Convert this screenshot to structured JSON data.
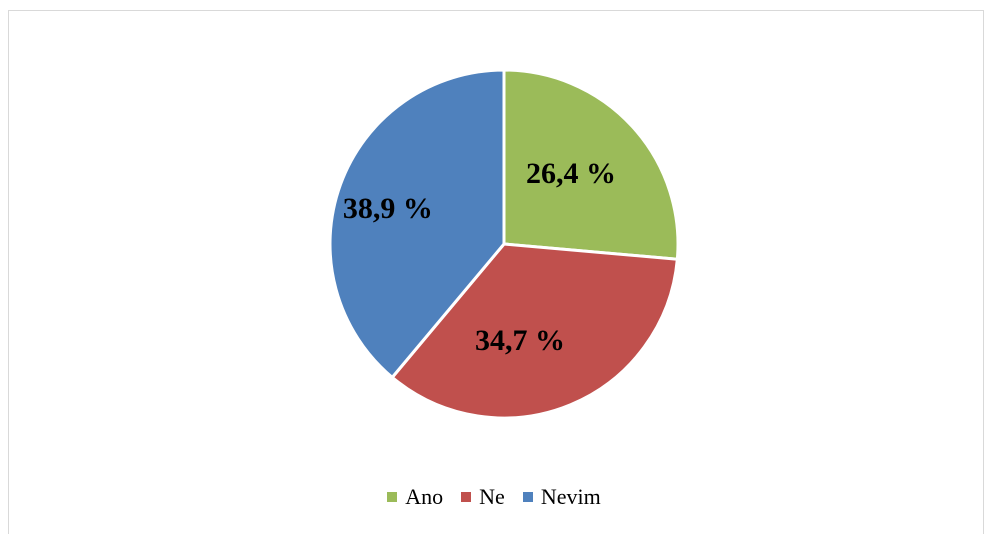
{
  "chart_data": {
    "type": "pie",
    "title": "",
    "categories": [
      "Ano",
      "Ne",
      "Nevim"
    ],
    "values": [
      26.4,
      34.7,
      38.9
    ],
    "value_labels": [
      "26,4 %",
      "34,7 %",
      "38,9 %"
    ],
    "colors": [
      "#9bbb59",
      "#c0504d",
      "#4f81bd"
    ],
    "start_angle_deg": 0,
    "direction": "clockwise",
    "legend": {
      "position": "bottom",
      "entries": [
        "Ano",
        "Ne",
        "Nevim"
      ]
    }
  }
}
